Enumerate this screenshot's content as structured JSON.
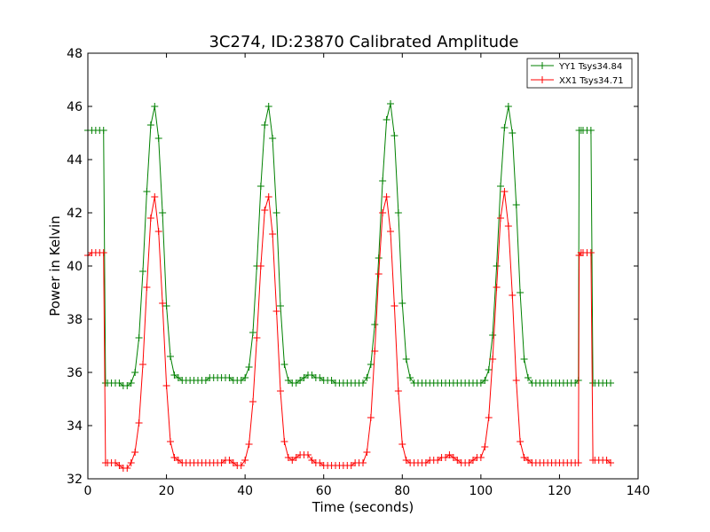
{
  "chart_data": {
    "type": "line",
    "title": "3C274, ID:23870 Calibrated Amplitude",
    "xlabel": "Time (seconds)",
    "ylabel": "Power in Kelvin",
    "xlim": [
      0,
      140
    ],
    "ylim": [
      32,
      48
    ],
    "xticks": [
      0,
      20,
      40,
      60,
      80,
      100,
      120,
      140
    ],
    "yticks": [
      32,
      34,
      36,
      38,
      40,
      42,
      44,
      46,
      48
    ],
    "xtick_labels": [
      "0",
      "20",
      "40",
      "60",
      "80",
      "100",
      "120",
      "140"
    ],
    "ytick_labels": [
      "32",
      "34",
      "36",
      "38",
      "40",
      "42",
      "44",
      "46",
      "48"
    ],
    "grid": false,
    "legend_position": "top-right",
    "marker": "+",
    "series": [
      {
        "name": "YY1 Tsys34.84",
        "color": "#008000",
        "x": [
          0,
          1,
          2,
          3,
          4,
          4.5,
          5,
          6,
          7,
          8,
          9,
          10,
          11,
          12,
          13,
          14,
          15,
          16,
          17,
          18,
          19,
          20,
          21,
          22,
          23,
          24,
          25,
          26,
          27,
          28,
          29,
          30,
          31,
          32,
          33,
          34,
          35,
          36,
          37,
          38,
          39,
          40,
          41,
          42,
          43,
          44,
          45,
          46,
          47,
          48,
          49,
          50,
          51,
          52,
          53,
          54,
          55,
          56,
          57,
          58,
          59,
          60,
          61,
          62,
          63,
          64,
          65,
          66,
          67,
          68,
          69,
          70,
          71,
          72,
          73,
          74,
          75,
          76,
          77,
          78,
          79,
          80,
          81,
          82,
          83,
          84,
          85,
          86,
          87,
          88,
          89,
          90,
          91,
          92,
          93,
          94,
          95,
          96,
          97,
          98,
          99,
          100,
          101,
          102,
          103,
          104,
          105,
          106,
          107,
          108,
          109,
          110,
          111,
          112,
          113,
          114,
          115,
          116,
          117,
          118,
          119,
          120,
          121,
          122,
          123,
          124,
          124.8,
          125,
          125.5,
          126,
          127,
          128,
          128.5,
          129,
          130,
          131,
          132,
          133
        ],
        "y": [
          45.1,
          45.1,
          45.1,
          45.1,
          45.1,
          35.6,
          35.6,
          35.6,
          35.6,
          35.6,
          35.5,
          35.5,
          35.6,
          36.0,
          37.3,
          39.8,
          42.8,
          45.3,
          46.0,
          44.8,
          42.0,
          38.5,
          36.6,
          35.9,
          35.8,
          35.7,
          35.7,
          35.7,
          35.7,
          35.7,
          35.7,
          35.7,
          35.8,
          35.8,
          35.8,
          35.8,
          35.8,
          35.8,
          35.7,
          35.7,
          35.7,
          35.8,
          36.2,
          37.5,
          40.0,
          43.0,
          45.3,
          46.0,
          44.8,
          42.0,
          38.5,
          36.3,
          35.7,
          35.6,
          35.6,
          35.7,
          35.8,
          35.9,
          35.9,
          35.8,
          35.8,
          35.7,
          35.7,
          35.7,
          35.6,
          35.6,
          35.6,
          35.6,
          35.6,
          35.6,
          35.6,
          35.6,
          35.8,
          36.3,
          37.8,
          40.3,
          43.2,
          45.5,
          46.1,
          44.9,
          42.0,
          38.6,
          36.5,
          35.8,
          35.6,
          35.6,
          35.6,
          35.6,
          35.6,
          35.6,
          35.6,
          35.6,
          35.6,
          35.6,
          35.6,
          35.6,
          35.6,
          35.6,
          35.6,
          35.6,
          35.6,
          35.6,
          35.7,
          36.1,
          37.4,
          40.0,
          43.0,
          45.2,
          46.0,
          45.0,
          42.3,
          39.0,
          36.5,
          35.8,
          35.6,
          35.6,
          35.6,
          35.6,
          35.6,
          35.6,
          35.6,
          35.6,
          35.6,
          35.6,
          35.6,
          35.6,
          35.7,
          45.1,
          45.1,
          45.1,
          45.1,
          45.1,
          35.6,
          35.6,
          35.6,
          35.6,
          35.6,
          35.6
        ]
      },
      {
        "name": "XX1 Tsys34.71",
        "color": "#ff0000",
        "x": [
          0,
          1,
          2,
          3,
          4,
          4.5,
          5,
          6,
          7,
          8,
          9,
          10,
          11,
          12,
          13,
          14,
          15,
          16,
          17,
          18,
          19,
          20,
          21,
          22,
          23,
          24,
          25,
          26,
          27,
          28,
          29,
          30,
          31,
          32,
          33,
          34,
          35,
          36,
          37,
          38,
          39,
          40,
          41,
          42,
          43,
          44,
          45,
          46,
          47,
          48,
          49,
          50,
          51,
          52,
          53,
          54,
          55,
          56,
          57,
          58,
          59,
          60,
          61,
          62,
          63,
          64,
          65,
          66,
          67,
          68,
          69,
          70,
          71,
          72,
          73,
          74,
          75,
          76,
          77,
          78,
          79,
          80,
          81,
          82,
          83,
          84,
          85,
          86,
          87,
          88,
          89,
          90,
          91,
          92,
          93,
          94,
          95,
          96,
          97,
          98,
          99,
          100,
          101,
          102,
          103,
          104,
          105,
          106,
          107,
          108,
          109,
          110,
          111,
          112,
          113,
          114,
          115,
          116,
          117,
          118,
          119,
          120,
          121,
          122,
          123,
          124,
          124.8,
          125,
          125.5,
          126,
          127,
          128,
          128.5,
          129,
          130,
          131,
          132,
          133
        ],
        "y": [
          40.4,
          40.5,
          40.5,
          40.5,
          40.5,
          32.6,
          32.6,
          32.6,
          32.6,
          32.5,
          32.4,
          32.4,
          32.6,
          33.0,
          34.1,
          36.3,
          39.2,
          41.8,
          42.6,
          41.3,
          38.6,
          35.5,
          33.4,
          32.8,
          32.7,
          32.6,
          32.6,
          32.6,
          32.6,
          32.6,
          32.6,
          32.6,
          32.6,
          32.6,
          32.6,
          32.6,
          32.7,
          32.7,
          32.6,
          32.5,
          32.5,
          32.7,
          33.3,
          34.9,
          37.3,
          40.0,
          42.1,
          42.6,
          41.2,
          38.3,
          35.3,
          33.4,
          32.8,
          32.7,
          32.8,
          32.9,
          32.9,
          32.9,
          32.7,
          32.6,
          32.6,
          32.5,
          32.5,
          32.5,
          32.5,
          32.5,
          32.5,
          32.5,
          32.5,
          32.6,
          32.6,
          32.6,
          33.0,
          34.3,
          36.8,
          39.7,
          42.0,
          42.6,
          41.3,
          38.5,
          35.3,
          33.3,
          32.7,
          32.6,
          32.6,
          32.6,
          32.6,
          32.6,
          32.7,
          32.7,
          32.7,
          32.8,
          32.8,
          32.9,
          32.8,
          32.7,
          32.6,
          32.6,
          32.6,
          32.7,
          32.8,
          32.8,
          33.2,
          34.3,
          36.5,
          39.2,
          41.8,
          42.8,
          41.5,
          38.9,
          35.7,
          33.4,
          32.8,
          32.7,
          32.6,
          32.6,
          32.6,
          32.6,
          32.6,
          32.6,
          32.6,
          32.6,
          32.6,
          32.6,
          32.6,
          32.6,
          32.6,
          40.4,
          40.5,
          40.5,
          40.5,
          40.5,
          32.7,
          32.7,
          32.7,
          32.7,
          32.7,
          32.6
        ]
      }
    ]
  }
}
